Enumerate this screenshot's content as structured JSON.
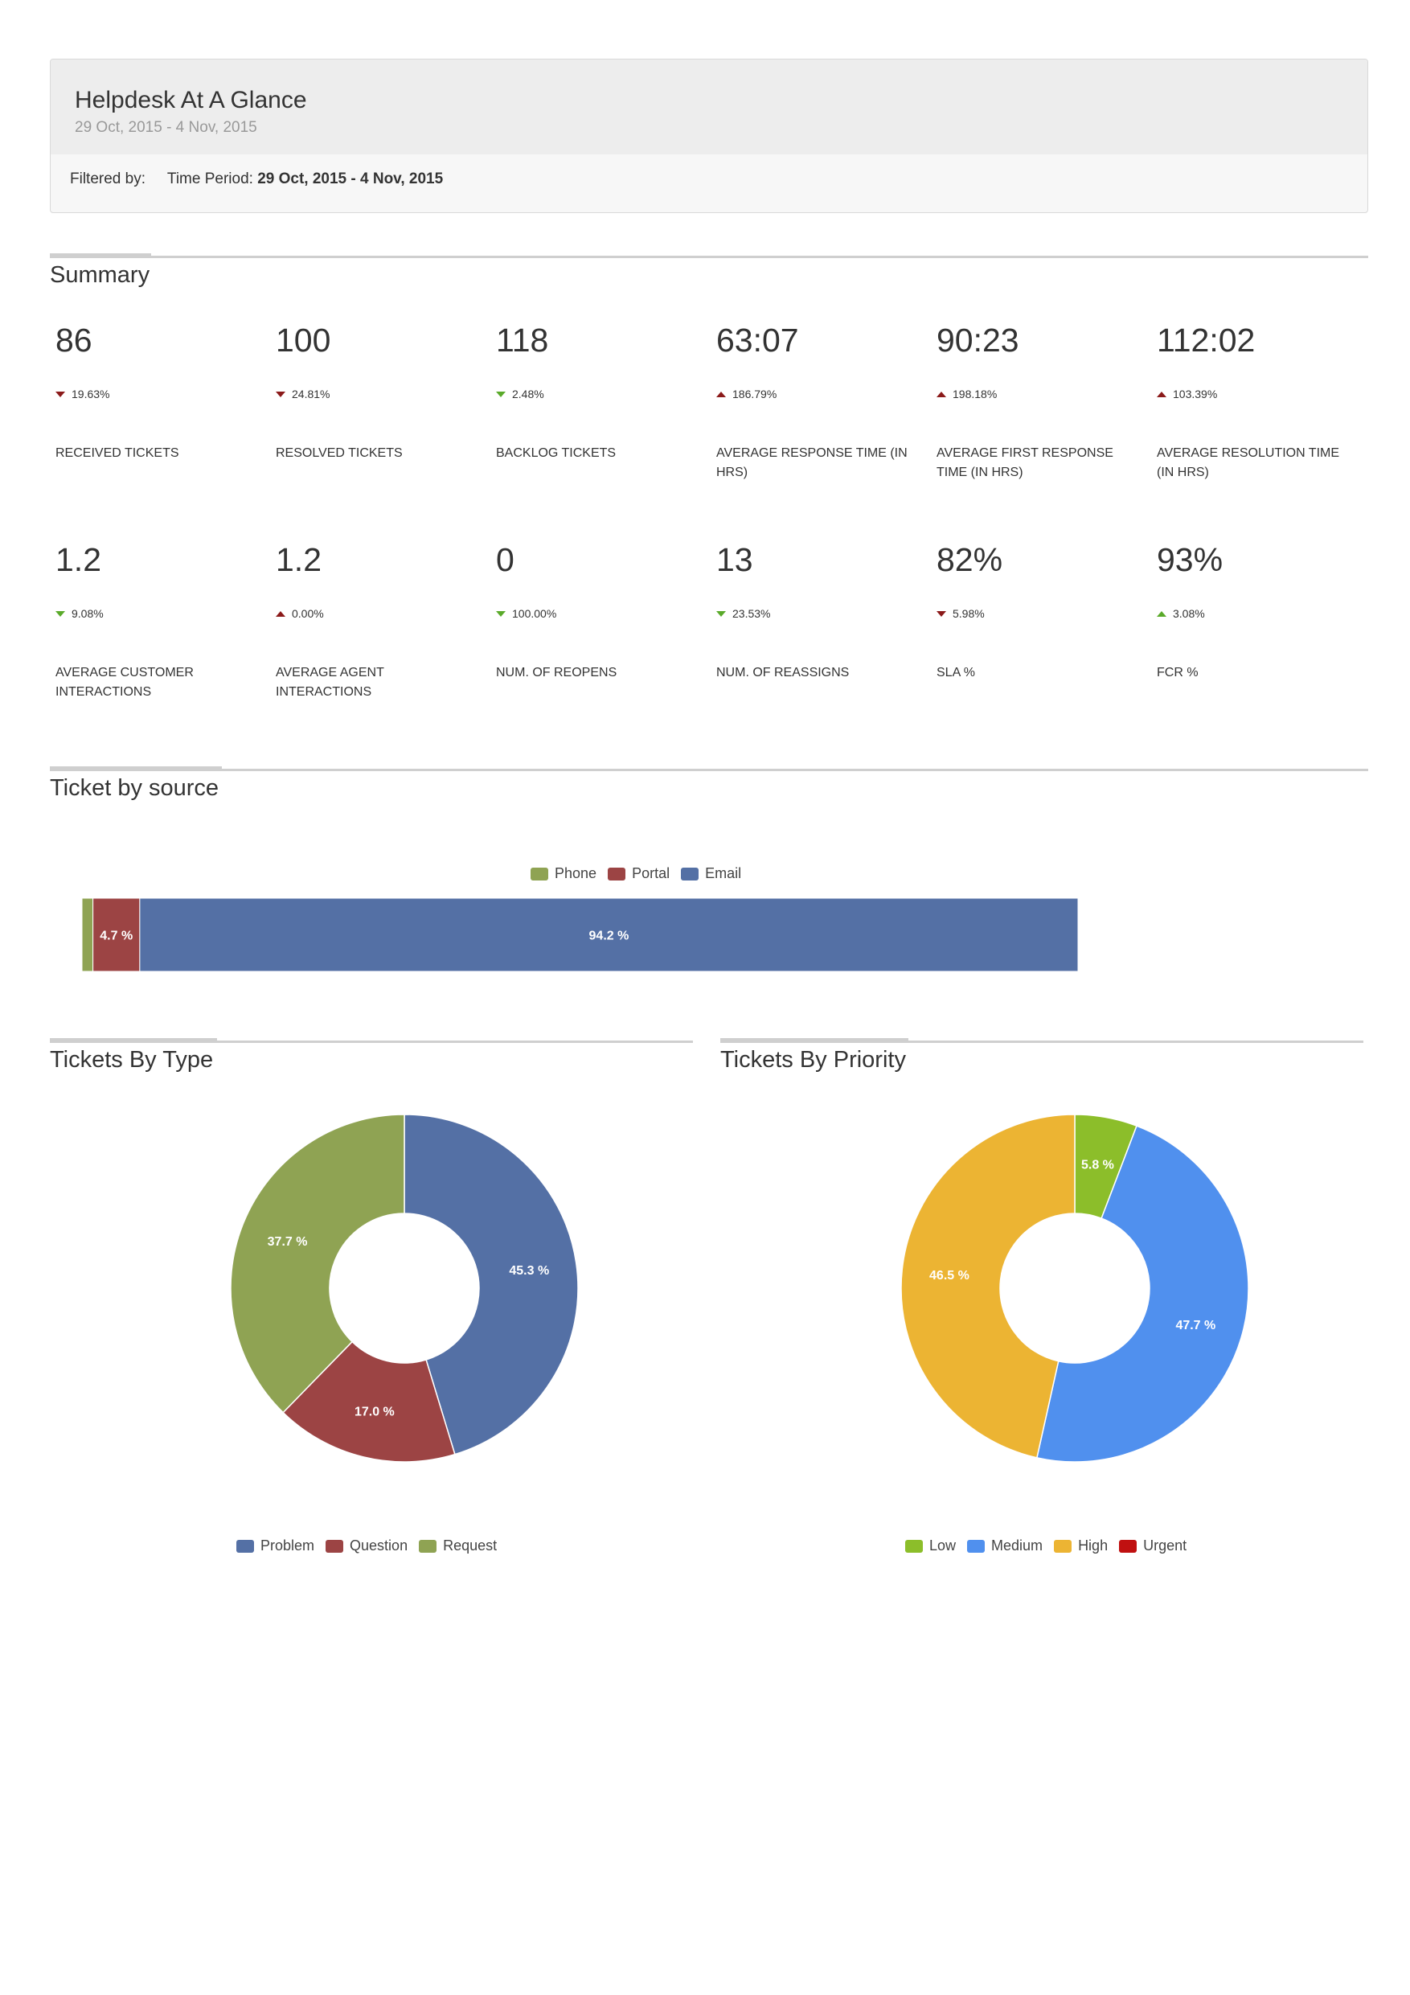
{
  "header": {
    "title": "Helpdesk At A Glance",
    "date_range": "29 Oct, 2015 - 4 Nov, 2015",
    "filtered_by_label": "Filtered by:",
    "time_period_label": "Time Period:",
    "time_period_value": "29 Oct, 2015 - 4 Nov, 2015"
  },
  "summary": {
    "title": "Summary",
    "metrics": [
      {
        "value": "86",
        "change": "19.63%",
        "direction": "down",
        "color": "#8b1a1a",
        "label": "RECEIVED TICKETS"
      },
      {
        "value": "100",
        "change": "24.81%",
        "direction": "down",
        "color": "#8b1a1a",
        "label": "RESOLVED TICKETS"
      },
      {
        "value": "118",
        "change": "2.48%",
        "direction": "down",
        "color": "#5aaa2a",
        "label": "BACKLOG TICKETS"
      },
      {
        "value": "63:07",
        "change": "186.79%",
        "direction": "up",
        "color": "#8b1a1a",
        "label": "AVERAGE RESPONSE TIME (IN HRS)"
      },
      {
        "value": "90:23",
        "change": "198.18%",
        "direction": "up",
        "color": "#8b1a1a",
        "label": "AVERAGE FIRST RESPONSE TIME (IN HRS)"
      },
      {
        "value": "112:02",
        "change": "103.39%",
        "direction": "up",
        "color": "#8b1a1a",
        "label": "AVERAGE RESOLUTION TIME (IN HRS)"
      },
      {
        "value": "1.2",
        "change": "9.08%",
        "direction": "down",
        "color": "#5aaa2a",
        "label": "AVERAGE CUSTOMER INTERACTIONS"
      },
      {
        "value": "1.2",
        "change": "0.00%",
        "direction": "up",
        "color": "#8b1a1a",
        "label": "AVERAGE AGENT INTERACTIONS"
      },
      {
        "value": "0",
        "change": "100.00%",
        "direction": "down",
        "color": "#5aaa2a",
        "label": "NUM. OF REOPENS"
      },
      {
        "value": "13",
        "change": "23.53%",
        "direction": "down",
        "color": "#5aaa2a",
        "label": "NUM. OF REASSIGNS"
      },
      {
        "value": "82%",
        "change": "5.98%",
        "direction": "down",
        "color": "#8b1a1a",
        "label": "SLA %"
      },
      {
        "value": "93%",
        "change": "3.08%",
        "direction": "up",
        "color": "#5aaa2a",
        "label": "FCR %"
      }
    ]
  },
  "chart_data": [
    {
      "type": "bar",
      "title": "Ticket by source",
      "orientation": "horizontal-stacked",
      "legend_position": "top",
      "series": [
        {
          "name": "Phone",
          "value": 1.1,
          "color": "#8fa353",
          "label": ""
        },
        {
          "name": "Portal",
          "value": 4.7,
          "color": "#9c4444",
          "label": "4.7 %"
        },
        {
          "name": "Email",
          "value": 94.2,
          "color": "#5470a5",
          "label": "94.2 %"
        }
      ]
    },
    {
      "type": "pie",
      "title": "Tickets By Type",
      "legend_position": "bottom",
      "slices": [
        {
          "name": "Problem",
          "value": 45.3,
          "color": "#5470a5",
          "label": "45.3 %"
        },
        {
          "name": "Question",
          "value": 17.0,
          "color": "#9c4444",
          "label": "17.0 %"
        },
        {
          "name": "Request",
          "value": 37.7,
          "color": "#8fa353",
          "label": "37.7 %"
        }
      ]
    },
    {
      "type": "pie",
      "title": "Tickets By Priority",
      "legend_position": "bottom",
      "slices": [
        {
          "name": "Low",
          "value": 5.8,
          "color": "#8cbe2a",
          "label": "5.8 %"
        },
        {
          "name": "Medium",
          "value": 47.7,
          "color": "#5090ee",
          "label": "47.7 %"
        },
        {
          "name": "High",
          "value": 46.5,
          "color": "#ecb433",
          "label": "46.5 %"
        },
        {
          "name": "Urgent",
          "value": 0,
          "color": "#c01010",
          "label": ""
        }
      ]
    }
  ]
}
